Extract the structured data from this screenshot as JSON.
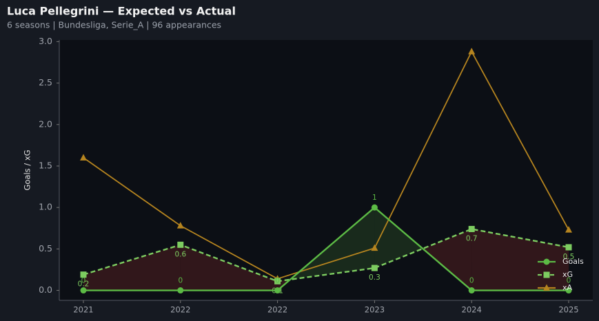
{
  "chart_data": {
    "type": "line",
    "title": "Luca Pellegrini — Expected vs Actual",
    "subtitle": "6 seasons | Bundesliga, Serie_A | 96 appearances",
    "ylabel": "Goals / xG",
    "categories": [
      "2021",
      "2022",
      "2022",
      "2023",
      "2024",
      "2025"
    ],
    "series": [
      {
        "name": "Goals",
        "color": "#5cba45",
        "marker": "circle",
        "linestyle": "solid",
        "values": [
          0,
          0,
          0,
          1,
          0,
          0
        ],
        "show_labels": true
      },
      {
        "name": "xG",
        "color": "#7dcc60",
        "marker": "square",
        "linestyle": "dashed",
        "values": [
          0.19,
          0.55,
          0.11,
          0.27,
          0.74,
          0.52
        ],
        "value_labels": [
          "0.2",
          "0.6",
          "0.1",
          "0.3",
          "0.7",
          "0.5"
        ],
        "show_labels": true
      },
      {
        "name": "xA",
        "color": "#b5841f",
        "marker": "triangle",
        "linestyle": "solid",
        "values": [
          1.6,
          0.78,
          0.14,
          0.51,
          2.88,
          0.73
        ],
        "show_labels": false
      }
    ],
    "ylim": [
      -0.12,
      3.02
    ],
    "yticks": [
      {
        "value": 0,
        "label": "0.0"
      },
      0.5,
      {
        "value": 1,
        "label": "1.0"
      },
      1.5,
      {
        "value": 2,
        "label": "2.0"
      },
      2.5,
      {
        "value": 3,
        "label": "3.0"
      }
    ],
    "legend": "lower right"
  }
}
